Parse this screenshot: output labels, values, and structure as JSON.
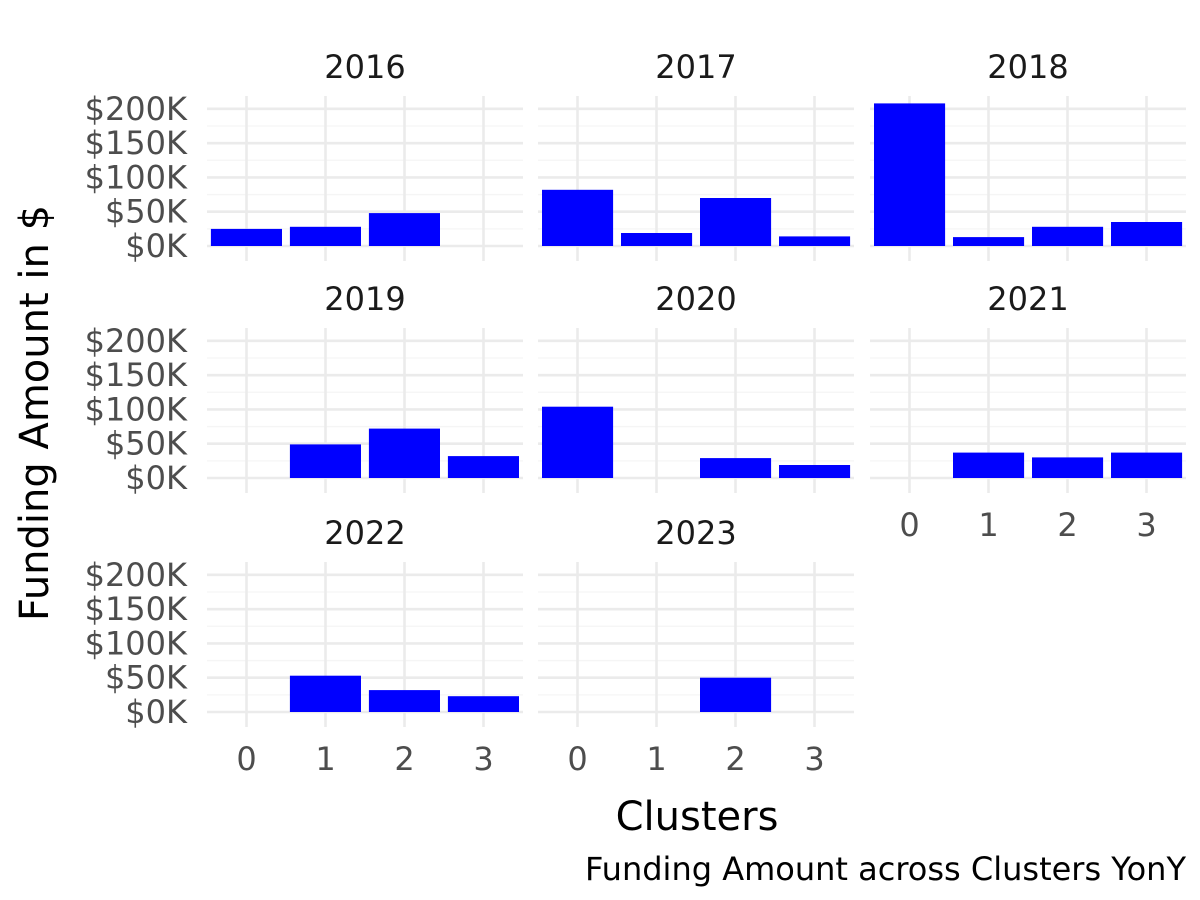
{
  "chart_data": {
    "type": "bar",
    "layout": "facet_wrap",
    "caption": "Funding Amount across Clusters YonY",
    "xlabel": "Clusters",
    "ylabel": "Funding Amount in $",
    "categories": [
      "0",
      "1",
      "2",
      "3"
    ],
    "ylim": [
      0,
      210000
    ],
    "yticks": [
      0,
      50000,
      100000,
      150000,
      200000
    ],
    "ytick_labels": [
      "$0K",
      "$50K",
      "$100K",
      "$150K",
      "$200K"
    ],
    "bar_color": "#0000ff",
    "grid": true,
    "legend": "none",
    "panels": [
      {
        "title": "2016",
        "values": [
          25000,
          28000,
          48000,
          null
        ]
      },
      {
        "title": "2017",
        "values": [
          82000,
          19000,
          70000,
          14000
        ]
      },
      {
        "title": "2018",
        "values": [
          208000,
          13000,
          28000,
          35000
        ]
      },
      {
        "title": "2019",
        "values": [
          null,
          49000,
          72000,
          32000
        ]
      },
      {
        "title": "2020",
        "values": [
          104000,
          null,
          29000,
          19000
        ]
      },
      {
        "title": "2021",
        "values": [
          null,
          37000,
          30000,
          37000
        ]
      },
      {
        "title": "2022",
        "values": [
          null,
          53000,
          32000,
          23000
        ]
      },
      {
        "title": "2023",
        "values": [
          null,
          null,
          50000,
          null
        ]
      }
    ]
  }
}
